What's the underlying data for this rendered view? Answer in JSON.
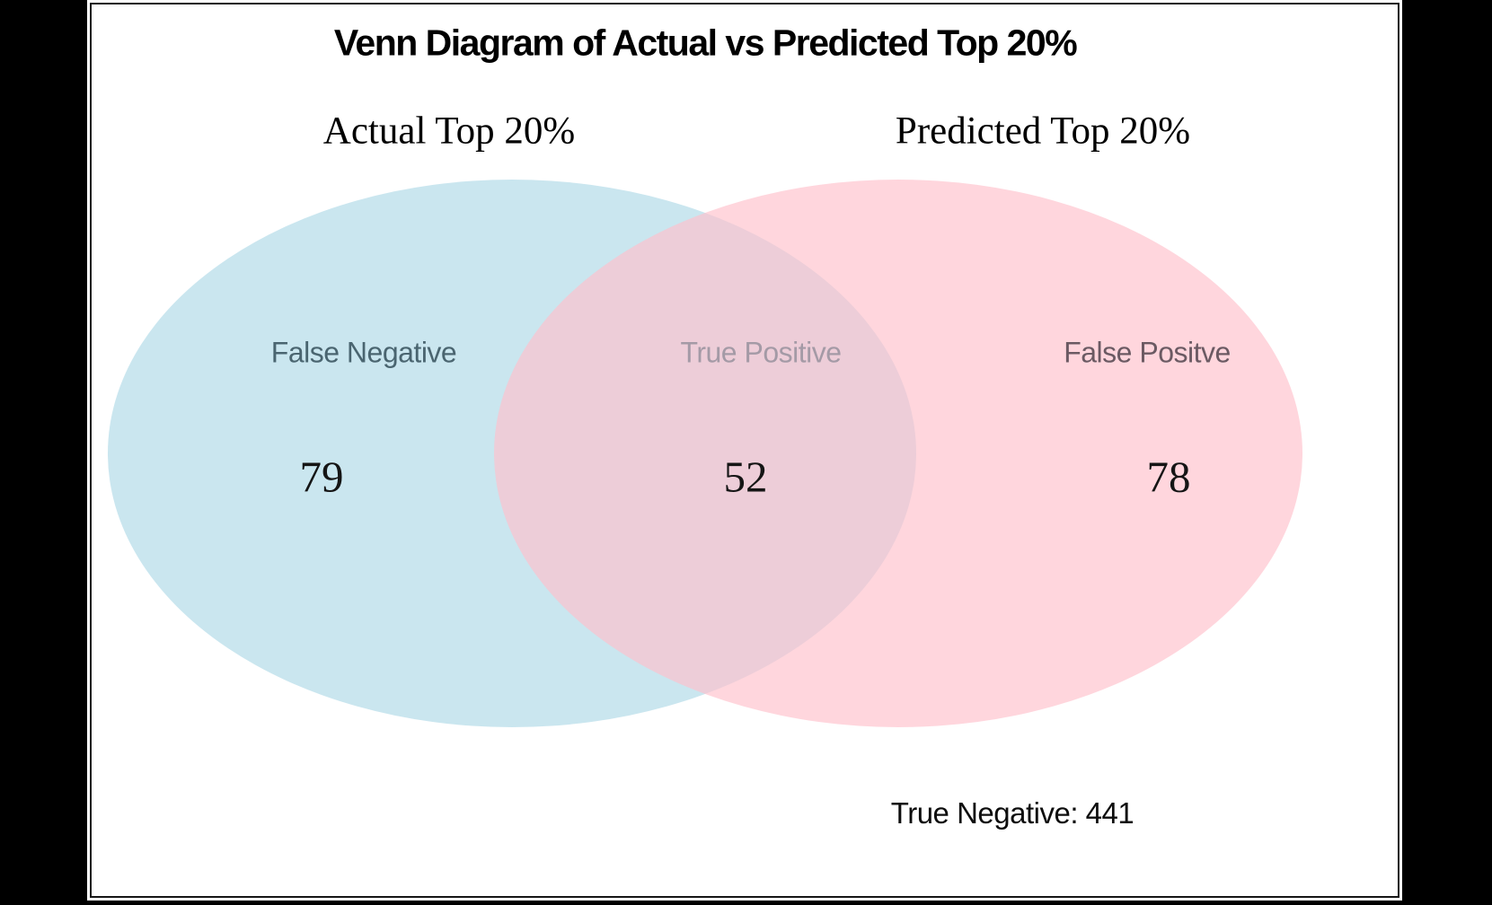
{
  "title": "Venn Diagram of Actual vs Predicted Top 20%",
  "sets": {
    "left_label": "Actual Top 20%",
    "right_label": "Predicted Top 20%"
  },
  "regions": [
    {
      "label": "False Negative",
      "value": "79",
      "label_color": "#4a6570"
    },
    {
      "label": "True Positive",
      "value": "52",
      "label_color": "#a49aa6"
    },
    {
      "label": "False Positve",
      "value": "78",
      "label_color": "#6b5a63"
    }
  ],
  "bottom_note": {
    "label": "True Negative:",
    "value": "441"
  },
  "colors": {
    "left_fill_rgba": "rgba(173,216,230,0.65)",
    "right_fill_rgba": "rgba(255,192,203,0.65)",
    "left_fill_hex": "#ADD8E6",
    "right_fill_hex": "#FFC0CB",
    "frame": "#000000",
    "canvas": "#ffffff"
  },
  "chart_data": {
    "type": "venn",
    "title": "Venn Diagram of Actual vs Predicted Top 20%",
    "set_labels": [
      "Actual Top 20%",
      "Predicted Top 20%"
    ],
    "region_labels": [
      "False Negative",
      "True Positive",
      "False Positve"
    ],
    "subsets": {
      "actual_only_false_negative": 79,
      "intersection_true_positive": 52,
      "predicted_only_false_positive": 78,
      "outside_true_negative": 441
    },
    "annotation": "True Negative: 441",
    "legend_position": "none",
    "set_colors": [
      "#ADD8E6",
      "#FFC0CB"
    ],
    "fill_alpha": 0.65
  }
}
